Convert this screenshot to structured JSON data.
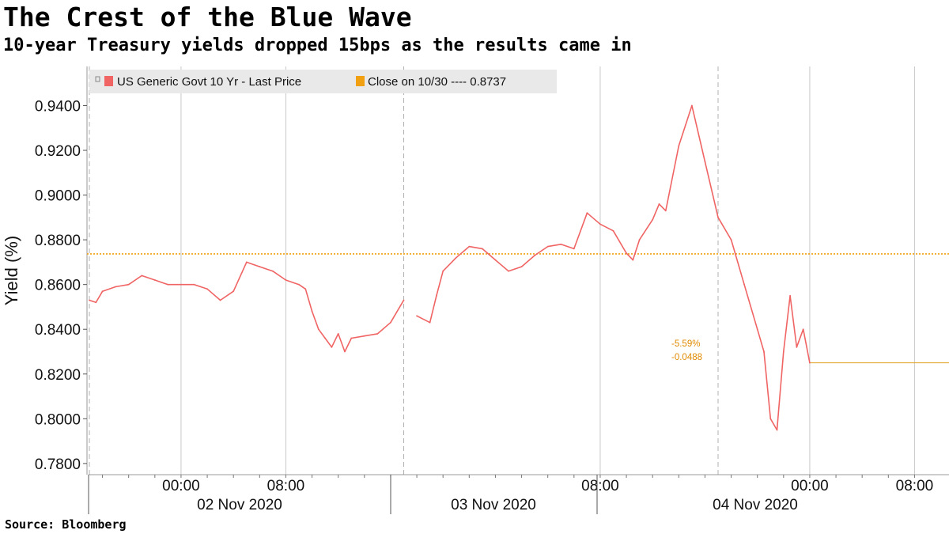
{
  "title": "The Crest of the Blue Wave",
  "subtitle": "10-year Treasury yields dropped 15bps as the results came in",
  "source": "Source:  Bloomberg",
  "chart_data": {
    "type": "line",
    "ylabel": "Yield (%)",
    "ylim": [
      0.775,
      0.9575
    ],
    "y_ticks": [
      "0.7800",
      "0.8000",
      "0.8200",
      "0.8400",
      "0.8600",
      "0.8800",
      "0.9000",
      "0.9200",
      "0.9400"
    ],
    "y_tick_values": [
      0.78,
      0.8,
      0.82,
      0.84,
      0.86,
      0.88,
      0.9,
      0.92,
      0.94
    ],
    "time_ticks": [
      "00:00",
      "08:00",
      "08:00",
      "00:00",
      "08:00"
    ],
    "date_labels": [
      "02 Nov 2020",
      "03 Nov 2020",
      "04 Nov 2020"
    ],
    "grid": true,
    "legend": {
      "position": "top-left",
      "series_label": "US Generic Govt 10 Yr - Last Price",
      "close_label": "Close on 10/30 ---- 0.8737"
    },
    "colors": {
      "series": "#f06464",
      "close_line": "#f0a010",
      "last_line": "#e0a020"
    },
    "reference_line": {
      "name": "Close on 10/30",
      "value": 0.8737
    },
    "last_value": 0.825,
    "annotations": [
      "-5.59%",
      "-0.0488"
    ],
    "series": [
      {
        "name": "US Generic Govt 10 Yr - Last Price",
        "x": [
          "11/1 17:00",
          "11/1 17:30",
          "11/1 18:00",
          "11/1 19:00",
          "11/1 20:00",
          "11/1 21:00",
          "11/1 22:00",
          "11/1 23:00",
          "11/2 00:00",
          "11/2 01:00",
          "11/2 02:00",
          "11/2 03:00",
          "11/2 04:00",
          "11/2 05:00",
          "11/2 06:00",
          "11/2 07:00",
          "11/2 08:00",
          "11/2 09:00",
          "11/2 09:30",
          "11/2 10:00",
          "11/2 10:30",
          "11/2 11:00",
          "11/2 11:30",
          "11/2 12:00",
          "11/2 12:30",
          "11/2 13:00",
          "11/2 14:00",
          "11/2 15:00",
          "11/2 16:00",
          "11/2 17:00",
          "11/2 18:00",
          "11/2 19:00",
          "11/2 19:30",
          "11/2 20:00",
          "11/2 21:00",
          "11/2 22:00",
          "11/2 23:00",
          "11/3 00:00",
          "11/3 01:00",
          "11/3 02:00",
          "11/3 03:00",
          "11/3 04:00",
          "11/3 05:00",
          "11/3 06:00",
          "11/3 07:00",
          "11/3 08:00",
          "11/3 09:00",
          "11/3 10:00",
          "11/3 10:30",
          "11/3 11:00",
          "11/3 12:00",
          "11/3 12:30",
          "11/3 13:00",
          "11/3 14:00",
          "11/3 15:00",
          "11/3 16:00",
          "11/3 17:00",
          "11/3 18:00",
          "11/3 19:00",
          "11/3 20:00",
          "11/3 20:30",
          "11/3 21:00",
          "11/3 21:30",
          "11/3 22:00",
          "11/3 22:30",
          "11/3 23:00",
          "11/3 23:30",
          "11/4 00:00"
        ],
        "values": [
          0.853,
          0.852,
          0.857,
          0.859,
          0.86,
          0.864,
          0.862,
          0.86,
          0.86,
          0.86,
          0.858,
          0.853,
          0.857,
          0.87,
          0.868,
          0.866,
          0.862,
          0.86,
          0.858,
          0.848,
          0.84,
          0.836,
          0.832,
          0.838,
          0.83,
          0.836,
          0.837,
          0.838,
          0.843,
          0.853,
          0.846,
          0.843,
          0.855,
          0.866,
          0.872,
          0.877,
          0.876,
          0.871,
          0.866,
          0.868,
          0.873,
          0.877,
          0.878,
          0.876,
          0.892,
          0.887,
          0.884,
          0.874,
          0.871,
          0.88,
          0.889,
          0.896,
          0.893,
          0.922,
          0.94,
          0.915,
          0.89,
          0.88,
          0.86,
          0.84,
          0.83,
          0.8,
          0.795,
          0.83,
          0.855,
          0.832,
          0.84,
          0.825
        ]
      }
    ]
  }
}
